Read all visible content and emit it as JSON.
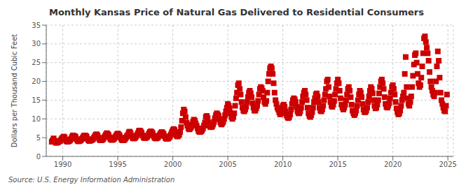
{
  "chart_data": {
    "type": "scatter",
    "title": "Monthly Kansas Price of Natural Gas Delivered to Residential Consumers",
    "y_label": "Dollars per Thousand Cubic Feet",
    "annotations": [
      "Source: U.S. Energy Information Administration"
    ],
    "color": "#CC0000",
    "marker": "square",
    "grid": true,
    "xlim": [
      1988.5,
      2025.5
    ],
    "xticks": [
      1990,
      1995,
      2000,
      2005,
      2010,
      2015,
      2020,
      2025
    ],
    "ylim": [
      0,
      35
    ],
    "yticks": [
      0,
      5,
      10,
      15,
      20,
      25,
      30,
      35
    ],
    "x": [
      1989.0,
      1989.083,
      1989.167,
      1989.25,
      1989.333,
      1989.417,
      1989.5,
      1989.583,
      1989.667,
      1989.75,
      1989.833,
      1989.917,
      1990.0,
      1990.083,
      1990.167,
      1990.25,
      1990.333,
      1990.417,
      1990.5,
      1990.583,
      1990.667,
      1990.75,
      1990.833,
      1990.917,
      1991.0,
      1991.083,
      1991.167,
      1991.25,
      1991.333,
      1991.417,
      1991.5,
      1991.583,
      1991.667,
      1991.75,
      1991.833,
      1991.917,
      1992.0,
      1992.083,
      1992.167,
      1992.25,
      1992.333,
      1992.417,
      1992.5,
      1992.583,
      1992.667,
      1992.75,
      1992.833,
      1992.917,
      1993.0,
      1993.083,
      1993.167,
      1993.25,
      1993.333,
      1993.417,
      1993.5,
      1993.583,
      1993.667,
      1993.75,
      1993.833,
      1993.917,
      1994.0,
      1994.083,
      1994.167,
      1994.25,
      1994.333,
      1994.417,
      1994.5,
      1994.583,
      1994.667,
      1994.75,
      1994.833,
      1994.917,
      1995.0,
      1995.083,
      1995.167,
      1995.25,
      1995.333,
      1995.417,
      1995.5,
      1995.583,
      1995.667,
      1995.75,
      1995.833,
      1995.917,
      1996.0,
      1996.083,
      1996.167,
      1996.25,
      1996.333,
      1996.417,
      1996.5,
      1996.583,
      1996.667,
      1996.75,
      1996.833,
      1996.917,
      1997.0,
      1997.083,
      1997.167,
      1997.25,
      1997.333,
      1997.417,
      1997.5,
      1997.583,
      1997.667,
      1997.75,
      1997.833,
      1997.917,
      1998.0,
      1998.083,
      1998.167,
      1998.25,
      1998.333,
      1998.417,
      1998.5,
      1998.583,
      1998.667,
      1998.75,
      1998.833,
      1998.917,
      1999.0,
      1999.083,
      1999.167,
      1999.25,
      1999.333,
      1999.417,
      1999.5,
      1999.583,
      1999.667,
      1999.75,
      1999.833,
      1999.917,
      2000.0,
      2000.083,
      2000.167,
      2000.25,
      2000.333,
      2000.417,
      2000.5,
      2000.583,
      2000.667,
      2000.75,
      2000.833,
      2000.917,
      2001.0,
      2001.083,
      2001.167,
      2001.25,
      2001.333,
      2001.417,
      2001.5,
      2001.583,
      2001.667,
      2001.75,
      2001.833,
      2001.917,
      2002.0,
      2002.083,
      2002.167,
      2002.25,
      2002.333,
      2002.417,
      2002.5,
      2002.583,
      2002.667,
      2002.75,
      2002.833,
      2002.917,
      2003.0,
      2003.083,
      2003.167,
      2003.25,
      2003.333,
      2003.417,
      2003.5,
      2003.583,
      2003.667,
      2003.75,
      2003.833,
      2003.917,
      2004.0,
      2004.083,
      2004.167,
      2004.25,
      2004.333,
      2004.417,
      2004.5,
      2004.583,
      2004.667,
      2004.75,
      2004.833,
      2004.917,
      2005.0,
      2005.083,
      2005.167,
      2005.25,
      2005.333,
      2005.417,
      2005.5,
      2005.583,
      2005.667,
      2005.75,
      2005.833,
      2005.917,
      2006.0,
      2006.083,
      2006.167,
      2006.25,
      2006.333,
      2006.417,
      2006.5,
      2006.583,
      2006.667,
      2006.75,
      2006.833,
      2006.917,
      2007.0,
      2007.083,
      2007.167,
      2007.25,
      2007.333,
      2007.417,
      2007.5,
      2007.583,
      2007.667,
      2007.75,
      2007.833,
      2007.917,
      2008.0,
      2008.083,
      2008.167,
      2008.25,
      2008.333,
      2008.417,
      2008.5,
      2008.583,
      2008.667,
      2008.75,
      2008.833,
      2008.917,
      2009.0,
      2009.083,
      2009.167,
      2009.25,
      2009.333,
      2009.417,
      2009.5,
      2009.583,
      2009.667,
      2009.75,
      2009.833,
      2009.917,
      2010.0,
      2010.083,
      2010.167,
      2010.25,
      2010.333,
      2010.417,
      2010.5,
      2010.583,
      2010.667,
      2010.75,
      2010.833,
      2010.917,
      2011.0,
      2011.083,
      2011.167,
      2011.25,
      2011.333,
      2011.417,
      2011.5,
      2011.583,
      2011.667,
      2011.75,
      2011.833,
      2011.917,
      2012.0,
      2012.083,
      2012.167,
      2012.25,
      2012.333,
      2012.417,
      2012.5,
      2012.583,
      2012.667,
      2012.75,
      2012.833,
      2012.917,
      2013.0,
      2013.083,
      2013.167,
      2013.25,
      2013.333,
      2013.417,
      2013.5,
      2013.583,
      2013.667,
      2013.75,
      2013.833,
      2013.917,
      2014.0,
      2014.083,
      2014.167,
      2014.25,
      2014.333,
      2014.417,
      2014.5,
      2014.583,
      2014.667,
      2014.75,
      2014.833,
      2014.917,
      2015.0,
      2015.083,
      2015.167,
      2015.25,
      2015.333,
      2015.417,
      2015.5,
      2015.583,
      2015.667,
      2015.75,
      2015.833,
      2015.917,
      2016.0,
      2016.083,
      2016.167,
      2016.25,
      2016.333,
      2016.417,
      2016.5,
      2016.583,
      2016.667,
      2016.75,
      2016.833,
      2016.917,
      2017.0,
      2017.083,
      2017.167,
      2017.25,
      2017.333,
      2017.417,
      2017.5,
      2017.583,
      2017.667,
      2017.75,
      2017.833,
      2017.917,
      2018.0,
      2018.083,
      2018.167,
      2018.25,
      2018.333,
      2018.417,
      2018.5,
      2018.583,
      2018.667,
      2018.75,
      2018.833,
      2018.917,
      2019.0,
      2019.083,
      2019.167,
      2019.25,
      2019.333,
      2019.417,
      2019.5,
      2019.583,
      2019.667,
      2019.75,
      2019.833,
      2019.917,
      2020.0,
      2020.083,
      2020.167,
      2020.25,
      2020.333,
      2020.417,
      2020.5,
      2020.583,
      2020.667,
      2020.75,
      2020.833,
      2020.917,
      2021.0,
      2021.083,
      2021.167,
      2021.25,
      2021.333,
      2021.417,
      2021.5,
      2021.583,
      2021.667,
      2021.75,
      2021.833,
      2021.917,
      2022.0,
      2022.083,
      2022.167,
      2022.25,
      2022.333,
      2022.417,
      2022.5,
      2022.583,
      2022.667,
      2022.75,
      2022.833,
      2022.917,
      2023.0,
      2023.083,
      2023.167,
      2023.25,
      2023.333,
      2023.417,
      2023.5,
      2023.583,
      2023.667,
      2023.75,
      2023.833,
      2023.917,
      2024.0,
      2024.083,
      2024.167,
      2024.25,
      2024.333,
      2024.417,
      2024.5,
      2024.583,
      2024.667,
      2024.75,
      2024.833,
      2024.917
    ],
    "values": [
      3.9,
      4.3,
      4.8,
      4.2,
      3.8,
      3.6,
      3.7,
      3.8,
      4.0,
      4.1,
      4.4,
      4.8,
      5.0,
      5.3,
      5.1,
      4.5,
      4.1,
      3.9,
      4.0,
      4.1,
      4.3,
      4.7,
      5.2,
      5.6,
      5.5,
      5.4,
      5.2,
      4.6,
      4.2,
      4.0,
      4.1,
      4.2,
      4.4,
      4.7,
      5.1,
      5.5,
      5.6,
      5.5,
      5.3,
      4.7,
      4.3,
      4.1,
      4.2,
      4.3,
      4.4,
      4.6,
      5.0,
      5.4,
      5.8,
      5.9,
      5.6,
      5.0,
      4.5,
      4.3,
      4.3,
      4.4,
      4.6,
      5.0,
      5.4,
      5.8,
      6.2,
      6.0,
      5.7,
      5.1,
      4.6,
      4.4,
      4.4,
      4.5,
      4.7,
      5.1,
      5.5,
      5.9,
      6.1,
      5.9,
      5.6,
      5.0,
      4.5,
      4.3,
      4.3,
      4.4,
      4.6,
      5.0,
      5.4,
      5.8,
      6.4,
      6.6,
      6.2,
      5.5,
      5.0,
      4.8,
      4.8,
      5.0,
      5.3,
      5.7,
      6.2,
      6.8,
      6.9,
      6.7,
      6.3,
      5.6,
      5.1,
      4.9,
      4.9,
      5.0,
      5.2,
      5.6,
      6.1,
      6.5,
      6.7,
      6.5,
      6.2,
      5.5,
      5.0,
      4.8,
      4.8,
      4.9,
      5.1,
      5.5,
      5.9,
      6.3,
      6.5,
      6.3,
      6.0,
      5.4,
      4.9,
      4.7,
      4.7,
      4.8,
      5.0,
      5.4,
      5.9,
      6.5,
      7.0,
      7.3,
      7.0,
      6.2,
      5.6,
      5.3,
      5.5,
      5.8,
      6.5,
      7.8,
      9.5,
      11.5,
      12.5,
      12.0,
      10.5,
      9.0,
      8.2,
      7.5,
      7.2,
      7.4,
      7.8,
      8.5,
      9.2,
      9.8,
      9.5,
      8.8,
      8.2,
      7.5,
      6.8,
      6.5,
      6.5,
      6.7,
      7.0,
      7.5,
      8.2,
      9.0,
      10.5,
      10.8,
      10.2,
      9.0,
      8.2,
      7.8,
      7.8,
      8.0,
      8.5,
      9.2,
      10.2,
      11.0,
      11.5,
      11.2,
      10.8,
      9.8,
      9.0,
      8.5,
      8.8,
      9.2,
      10.0,
      11.0,
      12.0,
      13.0,
      14.0,
      13.5,
      12.8,
      11.5,
      10.5,
      10.0,
      10.5,
      11.5,
      13.5,
      15.5,
      17.0,
      19.0,
      19.5,
      18.0,
      16.5,
      14.5,
      13.0,
      12.2,
      12.0,
      12.5,
      13.2,
      14.5,
      15.8,
      17.0,
      17.5,
      16.8,
      15.8,
      14.2,
      13.0,
      12.2,
      12.2,
      12.8,
      13.5,
      14.8,
      16.5,
      18.0,
      18.5,
      18.2,
      17.5,
      15.8,
      14.5,
      14.0,
      14.8,
      17.0,
      20.0,
      22.0,
      23.5,
      24.0,
      23.5,
      22.0,
      19.5,
      17.0,
      15.0,
      14.0,
      13.0,
      12.5,
      11.8,
      11.2,
      11.5,
      12.5,
      13.5,
      13.8,
      13.2,
      12.0,
      11.0,
      10.5,
      10.2,
      10.5,
      11.2,
      12.5,
      14.0,
      15.0,
      15.5,
      15.2,
      14.5,
      13.2,
      12.0,
      11.5,
      11.5,
      12.0,
      13.0,
      14.5,
      16.0,
      17.0,
      17.5,
      16.5,
      15.0,
      13.0,
      11.5,
      10.8,
      10.5,
      11.0,
      11.8,
      13.0,
      14.5,
      15.5,
      16.5,
      16.8,
      16.0,
      14.5,
      13.0,
      12.2,
      12.0,
      12.5,
      13.5,
      15.0,
      16.5,
      18.0,
      20.0,
      20.5,
      18.5,
      16.0,
      14.5,
      13.5,
      13.2,
      13.8,
      14.8,
      16.5,
      18.0,
      19.5,
      20.5,
      19.5,
      17.5,
      15.5,
      13.8,
      13.0,
      12.5,
      13.0,
      13.8,
      15.0,
      16.5,
      18.0,
      18.5,
      17.5,
      15.8,
      13.8,
      12.2,
      11.5,
      11.0,
      11.5,
      12.2,
      13.5,
      15.0,
      16.5,
      17.5,
      17.0,
      15.8,
      14.0,
      12.5,
      11.8,
      11.8,
      12.2,
      13.0,
      14.5,
      16.0,
      17.5,
      18.5,
      18.0,
      16.8,
      15.0,
      13.5,
      12.8,
      13.0,
      13.8,
      15.0,
      16.8,
      18.5,
      20.0,
      20.5,
      19.5,
      18.0,
      15.8,
      14.0,
      13.2,
      13.0,
      13.5,
      14.2,
      15.5,
      17.0,
      18.5,
      19.0,
      18.0,
      16.5,
      14.5,
      12.8,
      11.8,
      11.2,
      11.5,
      12.2,
      13.5,
      15.0,
      16.0,
      17.0,
      22.0,
      26.5,
      18.5,
      15.5,
      14.0,
      13.5,
      14.5,
      16.0,
      18.5,
      21.5,
      24.5,
      27.0,
      27.5,
      25.0,
      22.0,
      19.5,
      18.5,
      19.0,
      21.0,
      24.0,
      27.5,
      31.5,
      32.0,
      30.5,
      29.0,
      27.5,
      25.5,
      22.5,
      20.0,
      18.5,
      17.5,
      16.5,
      16.0,
      17.0,
      20.0,
      24.0,
      28.0,
      25.5,
      21.0,
      17.0,
      15.0,
      14.0,
      13.0,
      12.2,
      12.0,
      13.5,
      16.5
    ]
  }
}
